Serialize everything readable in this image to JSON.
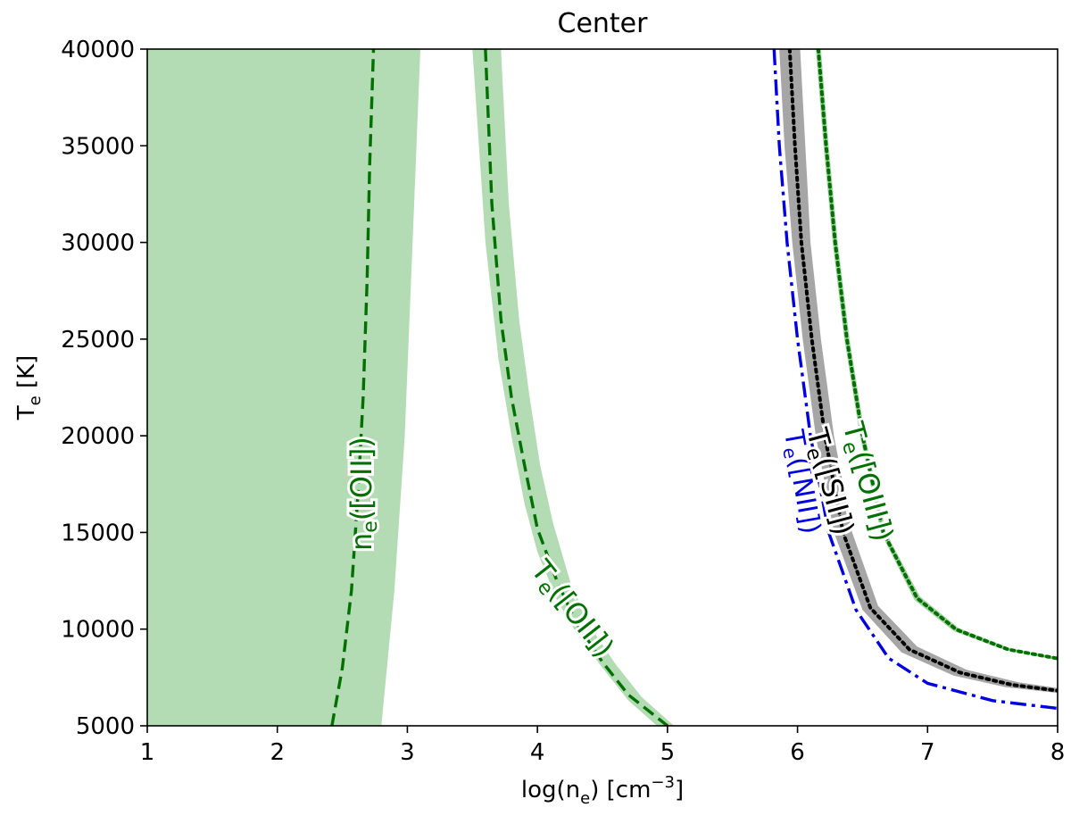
{
  "chart_data": {
    "type": "line",
    "title": "Center",
    "xlabel": {
      "prefix": "log(n",
      "sub": "e",
      "mid": ") [cm",
      "sup": "−3",
      "suffix": "]"
    },
    "ylabel": {
      "prefix": "T",
      "sub": "e",
      "suffix": " [K]"
    },
    "xlim": [
      1,
      8
    ],
    "ylim": [
      5000,
      40000
    ],
    "xticks": [
      1,
      2,
      3,
      4,
      5,
      6,
      7,
      8
    ],
    "yticks": [
      5000,
      10000,
      15000,
      20000,
      25000,
      30000,
      35000,
      40000
    ],
    "grid": false,
    "legend": "none",
    "bands": [
      {
        "name": "ne([OII]) band",
        "color": "#b4dcb4",
        "left": [
          [
            1,
            5000
          ],
          [
            1,
            40000
          ]
        ],
        "right": [
          [
            2.8,
            5000
          ],
          [
            2.9,
            12000
          ],
          [
            2.98,
            20000
          ],
          [
            3.04,
            30000
          ],
          [
            3.1,
            40000
          ]
        ]
      },
      {
        "name": "Te([OII]) band",
        "color": "#b4dcb4",
        "left": [
          [
            3.5,
            40000
          ],
          [
            3.6,
            30000
          ],
          [
            3.7,
            24000
          ],
          [
            3.8,
            20000
          ],
          [
            3.9,
            16500
          ],
          [
            4.0,
            14000
          ],
          [
            4.15,
            11500
          ],
          [
            4.3,
            9800
          ],
          [
            4.5,
            8000
          ],
          [
            4.7,
            6300
          ],
          [
            4.92,
            5000
          ]
        ],
        "right": [
          [
            3.72,
            40000
          ],
          [
            3.78,
            32000
          ],
          [
            3.86,
            26000
          ],
          [
            3.94,
            22000
          ],
          [
            4.02,
            18500
          ],
          [
            4.12,
            15500
          ],
          [
            4.25,
            12500
          ],
          [
            4.4,
            10200
          ],
          [
            4.6,
            8200
          ],
          [
            4.8,
            6500
          ],
          [
            5.05,
            5000
          ]
        ]
      },
      {
        "name": "Te([SII]) band",
        "color": "#a6a6a6",
        "left": [
          [
            5.86,
            40000
          ],
          [
            5.9,
            35000
          ],
          [
            5.96,
            30000
          ],
          [
            6.04,
            25000
          ],
          [
            6.14,
            20000
          ],
          [
            6.28,
            15000
          ],
          [
            6.5,
            11000
          ],
          [
            6.8,
            8800
          ],
          [
            7.2,
            7600
          ],
          [
            7.6,
            7000
          ],
          [
            8.0,
            6700
          ]
        ],
        "right": [
          [
            6.02,
            40000
          ],
          [
            6.06,
            35000
          ],
          [
            6.1,
            30000
          ],
          [
            6.18,
            25000
          ],
          [
            6.28,
            20000
          ],
          [
            6.42,
            15000
          ],
          [
            6.62,
            11200
          ],
          [
            6.92,
            9100
          ],
          [
            7.3,
            7900
          ],
          [
            7.7,
            7250
          ],
          [
            8.0,
            6950
          ]
        ]
      },
      {
        "name": "Te([OIII]) band",
        "color": "#a9d4a9",
        "left": [
          [
            6.14,
            40000
          ],
          [
            6.2,
            35000
          ],
          [
            6.27,
            30000
          ],
          [
            6.36,
            25000
          ],
          [
            6.48,
            20000
          ],
          [
            6.64,
            15000
          ],
          [
            6.9,
            11500
          ],
          [
            7.2,
            9900
          ],
          [
            7.6,
            8900
          ],
          [
            8.0,
            8400
          ]
        ],
        "right": [
          [
            6.18,
            40000
          ],
          [
            6.24,
            35000
          ],
          [
            6.31,
            30000
          ],
          [
            6.4,
            25000
          ],
          [
            6.52,
            20000
          ],
          [
            6.68,
            15000
          ],
          [
            6.94,
            11700
          ],
          [
            7.24,
            10050
          ],
          [
            7.64,
            9000
          ],
          [
            8.0,
            8550
          ]
        ]
      }
    ],
    "series": [
      {
        "name": "ne([OII])",
        "color": "#007000",
        "dash": "dashed",
        "x": [
          2.42,
          2.5,
          2.57,
          2.62,
          2.66,
          2.69,
          2.71,
          2.74
        ],
        "y": [
          5000,
          8000,
          12000,
          17000,
          22000,
          28000,
          34000,
          40000
        ]
      },
      {
        "name": "Te([OII])",
        "color": "#007000",
        "dash": "dashed",
        "x": [
          3.6,
          3.65,
          3.72,
          3.8,
          3.9,
          4.0,
          4.15,
          4.3,
          4.5,
          4.7,
          5.0
        ],
        "y": [
          40000,
          32000,
          26000,
          22000,
          18500,
          15200,
          12500,
          10300,
          8300,
          6600,
          5000
        ]
      },
      {
        "name": "Te([NII])",
        "color": "#0000e0",
        "dash": "dashdot",
        "x": [
          5.82,
          5.86,
          5.92,
          6.0,
          6.1,
          6.24,
          6.45,
          6.7,
          7.0,
          7.5,
          8.0
        ],
        "y": [
          40000,
          35000,
          30000,
          25000,
          20000,
          15000,
          11000,
          8500,
          7200,
          6300,
          5900
        ]
      },
      {
        "name": "Te([SII])",
        "color": "#000000",
        "dash": "dotted",
        "x": [
          5.94,
          5.98,
          6.03,
          6.11,
          6.21,
          6.35,
          6.56,
          6.86,
          7.25,
          7.65,
          8.0
        ],
        "y": [
          40000,
          35000,
          30000,
          25000,
          20000,
          15000,
          11100,
          8950,
          7750,
          7120,
          6820
        ]
      },
      {
        "name": "Te([OIII])",
        "color": "#007000",
        "dash": "dotted",
        "x": [
          6.16,
          6.22,
          6.29,
          6.38,
          6.5,
          6.66,
          6.92,
          7.22,
          7.62,
          8.0
        ],
        "y": [
          40000,
          35000,
          30000,
          25000,
          20000,
          15000,
          11600,
          9980,
          8950,
          8480
        ]
      }
    ],
    "annotations": [
      {
        "name": "ne([OII])",
        "base": "n",
        "sub": "e",
        "rest": "([OII])",
        "color": "#007000",
        "x": 2.66,
        "y": 17000,
        "angle": -90,
        "size": 32
      },
      {
        "name": "Te([OII])",
        "base": "T",
        "sub": "e",
        "rest": "([OII])",
        "color": "#007000",
        "x": 4.26,
        "y": 11000,
        "angle": 52,
        "size": 32
      },
      {
        "name": "Te([NII])",
        "base": "T",
        "sub": "e",
        "rest": "([NII])",
        "color": "#0000e0",
        "x": 6.03,
        "y": 17600,
        "angle": 80,
        "size": 30
      },
      {
        "name": "Te([SII])",
        "base": "T",
        "sub": "e",
        "rest": "([SII])",
        "color": "#000000",
        "x": 6.24,
        "y": 17600,
        "angle": 75,
        "size": 32
      },
      {
        "name": "Te([OIII])",
        "base": "T",
        "sub": "e",
        "rest": "([OIII])",
        "color": "#007000",
        "x": 6.53,
        "y": 17600,
        "angle": 75,
        "size": 32
      }
    ]
  }
}
